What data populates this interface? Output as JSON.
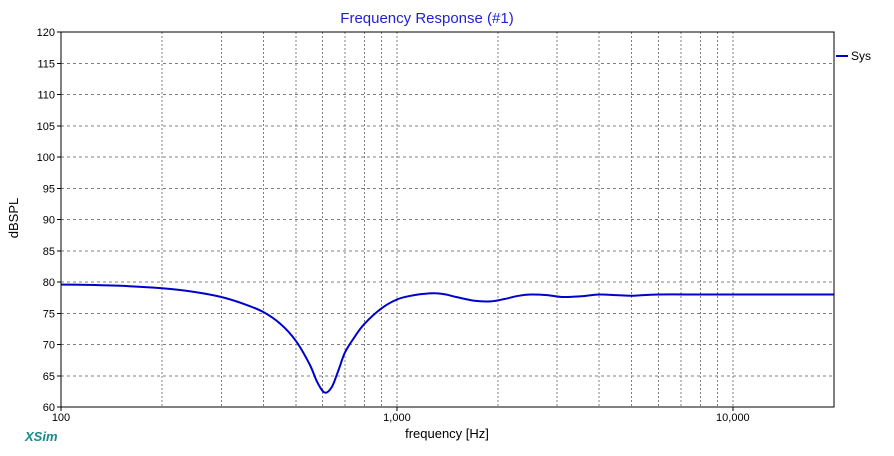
{
  "app": {
    "brand": "XSim"
  },
  "colors": {
    "title": "#1f1fd6",
    "series": "#0000cc",
    "grid": "#808080",
    "frame": "#000000",
    "brand": "#1a8a8a",
    "background": "#ffffff"
  },
  "chart_data": {
    "type": "line",
    "title": "Frequency Response (#1)",
    "xlabel": "frequency [Hz]",
    "ylabel": "dBSPL",
    "xscale": "log",
    "xlim": [
      100,
      20000
    ],
    "ylim": [
      60,
      120
    ],
    "yticks": [
      60,
      65,
      70,
      75,
      80,
      85,
      90,
      95,
      100,
      105,
      110,
      115,
      120
    ],
    "xticks": [
      {
        "value": 100,
        "label": "100"
      },
      {
        "value": 1000,
        "label": "1,000"
      },
      {
        "value": 10000,
        "label": "10,000"
      }
    ],
    "x_minor_grid": [
      200,
      300,
      400,
      500,
      600,
      700,
      800,
      900,
      2000,
      3000,
      4000,
      5000,
      6000,
      7000,
      8000,
      9000
    ],
    "grid": true,
    "legend_position": "right",
    "series": [
      {
        "name": "Sys",
        "x": [
          100,
          150,
          200,
          250,
          300,
          350,
          400,
          450,
          500,
          550,
          580,
          610,
          640,
          670,
          700,
          750,
          800,
          900,
          1000,
          1100,
          1200,
          1300,
          1400,
          1500,
          1700,
          1900,
          2100,
          2300,
          2500,
          2800,
          3100,
          3500,
          4000,
          4500,
          5000,
          6000,
          8000,
          10000,
          15000,
          20000
        ],
        "y": [
          79.6,
          79.4,
          79.0,
          78.4,
          77.6,
          76.5,
          75.2,
          73.3,
          70.6,
          66.8,
          63.9,
          62.3,
          63.2,
          65.9,
          68.7,
          71.3,
          73.3,
          75.8,
          77.2,
          77.8,
          78.1,
          78.2,
          78.0,
          77.6,
          77.0,
          76.9,
          77.3,
          77.8,
          78.0,
          77.9,
          77.6,
          77.7,
          78.0,
          77.9,
          77.8,
          78.0,
          78.0,
          78.0,
          78.0,
          78.0
        ]
      }
    ]
  }
}
